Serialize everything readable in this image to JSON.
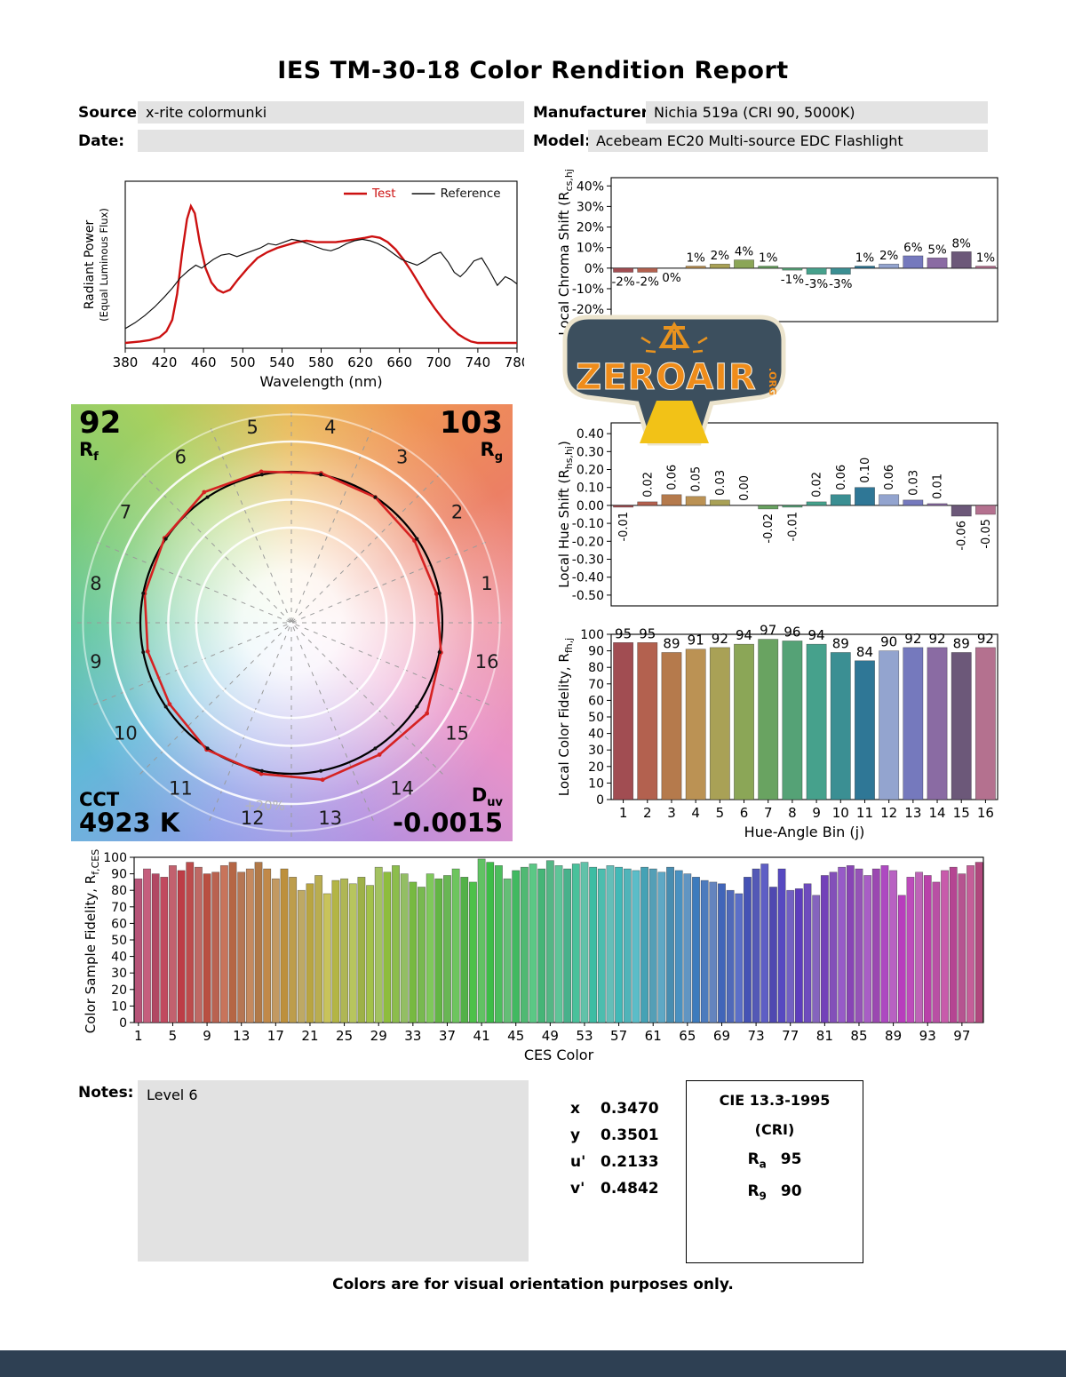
{
  "page": {
    "title": "IES TM-30-18 Color Rendition Report",
    "footer": "Colors are for visual orientation purposes only."
  },
  "header": {
    "source_label": "Source:",
    "source_value": "x-rite colormunki",
    "manufacturer_label": "Manufacturer:",
    "manufacturer_value": "Nichia 519a (CRI 90, 5000K)",
    "date_label": "Date:",
    "date_value": "",
    "model_label": "Model:",
    "model_value": "Acebeam EC20 Multi-source EDC Flashlight"
  },
  "logo": {
    "name": "ZEROAIR",
    "suffix": ".ORG"
  },
  "notes": {
    "label": "Notes:",
    "value": "Level 6"
  },
  "chromaticity": {
    "rows": [
      {
        "label": "x",
        "value": "0.3470"
      },
      {
        "label": "y",
        "value": "0.3501"
      },
      {
        "label": "u'",
        "value": "0.2133"
      },
      {
        "label": "v'",
        "value": "0.4842"
      }
    ]
  },
  "cri": {
    "title": "CIE 13.3-1995",
    "subtitle": "(CRI)",
    "rows": [
      {
        "label": "R",
        "sub": "a",
        "value": "95"
      },
      {
        "label": "R",
        "sub": "9",
        "value": "90"
      }
    ]
  },
  "vector_graphic": {
    "rf_value": "92",
    "rf_label_main": "R",
    "rf_label_sub": "f",
    "rg_value": "103",
    "rg_label_main": "R",
    "rg_label_sub": "g",
    "cct_label": "CCT",
    "cct_value": "4923 K",
    "duv_label_main": "D",
    "duv_label_sub": "uv",
    "duv_value": "-0.0015",
    "ring_label": "+20%",
    "bin_numbers": [
      1,
      2,
      3,
      4,
      5,
      6,
      7,
      8,
      9,
      10,
      11,
      12,
      13,
      14,
      15,
      16
    ]
  },
  "hue_bin_colors": [
    "#a14d52",
    "#b3614f",
    "#b57a4c",
    "#bb9254",
    "#a9a156",
    "#8ba657",
    "#69a361",
    "#55a276",
    "#46a18c",
    "#3b8f93",
    "#2f7796",
    "#93a4cf",
    "#7579bd",
    "#8a6ba3",
    "#6c5879",
    "#b4718f"
  ],
  "chart_data": [
    {
      "id": "spd",
      "type": "line",
      "xlabel": "Wavelength (nm)",
      "ylabel_line1": "Radiant Power",
      "ylabel_line2": "(Equal Luminous Flux)",
      "xlim": [
        380,
        780
      ],
      "xticks": [
        380,
        420,
        460,
        500,
        540,
        580,
        620,
        660,
        700,
        740,
        780
      ],
      "legend": [
        {
          "label": "Test",
          "color": "#cc1111"
        },
        {
          "label": "Reference",
          "color": "#111111"
        }
      ],
      "series": [
        {
          "name": "Test",
          "color": "#cc1111",
          "width": 2.4,
          "x": [
            380,
            395,
            405,
            415,
            422,
            428,
            433,
            438,
            443,
            447,
            451,
            456,
            462,
            468,
            474,
            480,
            487,
            495,
            505,
            515,
            525,
            535,
            545,
            555,
            565,
            575,
            585,
            595,
            605,
            615,
            625,
            632,
            640,
            648,
            656,
            664,
            672,
            680,
            688,
            696,
            704,
            712,
            720,
            727,
            733,
            740,
            750,
            780
          ],
          "y": [
            0.0,
            0.01,
            0.02,
            0.04,
            0.08,
            0.16,
            0.34,
            0.62,
            0.86,
            0.95,
            0.9,
            0.7,
            0.52,
            0.42,
            0.37,
            0.35,
            0.37,
            0.44,
            0.52,
            0.59,
            0.63,
            0.66,
            0.68,
            0.7,
            0.71,
            0.7,
            0.7,
            0.7,
            0.71,
            0.72,
            0.73,
            0.74,
            0.73,
            0.7,
            0.65,
            0.58,
            0.5,
            0.41,
            0.32,
            0.24,
            0.17,
            0.11,
            0.06,
            0.03,
            0.01,
            0.0,
            0.0,
            0.0
          ]
        },
        {
          "name": "Reference",
          "color": "#111111",
          "width": 1.2,
          "x": [
            380,
            390,
            400,
            410,
            420,
            428,
            436,
            444,
            452,
            458,
            464,
            470,
            478,
            486,
            494,
            502,
            510,
            518,
            526,
            534,
            542,
            550,
            558,
            566,
            574,
            582,
            590,
            598,
            606,
            614,
            622,
            630,
            638,
            646,
            654,
            662,
            670,
            678,
            686,
            694,
            702,
            710,
            716,
            722,
            728,
            736,
            744,
            752,
            760,
            768,
            774,
            780
          ],
          "y": [
            0.1,
            0.14,
            0.19,
            0.25,
            0.32,
            0.38,
            0.45,
            0.5,
            0.54,
            0.52,
            0.55,
            0.58,
            0.61,
            0.62,
            0.6,
            0.62,
            0.64,
            0.66,
            0.69,
            0.68,
            0.7,
            0.72,
            0.71,
            0.69,
            0.67,
            0.65,
            0.64,
            0.66,
            0.69,
            0.71,
            0.72,
            0.71,
            0.69,
            0.66,
            0.62,
            0.58,
            0.56,
            0.54,
            0.57,
            0.61,
            0.63,
            0.56,
            0.49,
            0.46,
            0.5,
            0.57,
            0.59,
            0.5,
            0.4,
            0.46,
            0.44,
            0.41
          ]
        }
      ]
    },
    {
      "id": "chroma_shift",
      "type": "bar",
      "ylabel_main": "Local Chroma Shift (R",
      "ylabel_sub": "cs,hj",
      "ylabel_end": ")",
      "ylim": [
        -26,
        44
      ],
      "yticks": [
        40,
        30,
        20,
        10,
        0,
        -10,
        -20
      ],
      "values": [
        -2,
        -2,
        0,
        1,
        2,
        4,
        1,
        -1,
        -3,
        -3,
        1,
        2,
        6,
        5,
        8,
        1
      ],
      "labels": [
        "-2%",
        "-2%",
        "0%",
        "1%",
        "2%",
        "4%",
        "1%",
        "-1%",
        "-3%",
        "-3%",
        "1%",
        "2%",
        "6%",
        "5%",
        "8%",
        "1%"
      ]
    },
    {
      "id": "hue_shift",
      "type": "bar",
      "ylabel_main": "Local Hue Shift (R",
      "ylabel_sub": "hs,hj",
      "ylabel_end": ")",
      "ylim": [
        -0.56,
        0.46
      ],
      "yticks": [
        0.4,
        0.3,
        0.2,
        0.1,
        0.0,
        -0.1,
        -0.2,
        -0.3,
        -0.4,
        -0.5
      ],
      "values": [
        -0.01,
        0.02,
        0.06,
        0.05,
        0.03,
        0.0,
        -0.02,
        -0.01,
        0.02,
        0.06,
        0.1,
        0.06,
        0.03,
        0.01,
        -0.06,
        -0.05
      ],
      "labels": [
        "-0.01",
        "0.02",
        "0.06",
        "0.05",
        "0.03",
        "0.00",
        "-0.02",
        "-0.01",
        "0.02",
        "0.06",
        "0.10",
        "0.06",
        "0.03",
        "0.01",
        "-0.06",
        "-0.05"
      ]
    },
    {
      "id": "local_fidelity",
      "type": "bar",
      "ylabel_main": "Local Color Fidelity, R",
      "ylabel_sub": "fh,j",
      "ylabel_end": "",
      "xlabel": "Hue-Angle Bin (j)",
      "ylim": [
        0,
        100
      ],
      "yticks": [
        100,
        90,
        80,
        70,
        60,
        50,
        40,
        30,
        20,
        10,
        0
      ],
      "categories": [
        1,
        2,
        3,
        4,
        5,
        6,
        7,
        8,
        9,
        10,
        11,
        12,
        13,
        14,
        15,
        16
      ],
      "values": [
        95,
        95,
        89,
        91,
        92,
        94,
        97,
        96,
        94,
        89,
        84,
        90,
        92,
        92,
        89,
        92
      ]
    },
    {
      "id": "ces_fidelity",
      "type": "bar",
      "ylabel_main": "Color Sample Fidelity, R",
      "ylabel_sub": "f,CESi",
      "ylabel_end": "",
      "xlabel": "CES Color",
      "ylim": [
        0,
        100
      ],
      "yticks": [
        100,
        90,
        80,
        70,
        60,
        50,
        40,
        30,
        20,
        10,
        0
      ],
      "xticks": [
        1,
        5,
        9,
        13,
        17,
        21,
        25,
        29,
        33,
        37,
        41,
        45,
        49,
        53,
        57,
        61,
        65,
        69,
        73,
        77,
        81,
        85,
        89,
        93,
        97
      ],
      "values": [
        87,
        93,
        90,
        88,
        95,
        92,
        97,
        94,
        90,
        91,
        95,
        97,
        91,
        93,
        97,
        93,
        87,
        93,
        88,
        80,
        84,
        89,
        78,
        86,
        87,
        84,
        88,
        83,
        94,
        91,
        95,
        90,
        85,
        82,
        90,
        87,
        89,
        93,
        88,
        85,
        99,
        97,
        95,
        87,
        92,
        94,
        96,
        93,
        98,
        95,
        93,
        96,
        97,
        94,
        93,
        95,
        94,
        93,
        92,
        94,
        93,
        91,
        94,
        92,
        90,
        88,
        86,
        85,
        84,
        80,
        78,
        88,
        93,
        96,
        82,
        93,
        80,
        81,
        84,
        77,
        89,
        91,
        94,
        95,
        93,
        89,
        93,
        95,
        92,
        77,
        88,
        91,
        89,
        85,
        92,
        94,
        90,
        95,
        97
      ]
    }
  ]
}
